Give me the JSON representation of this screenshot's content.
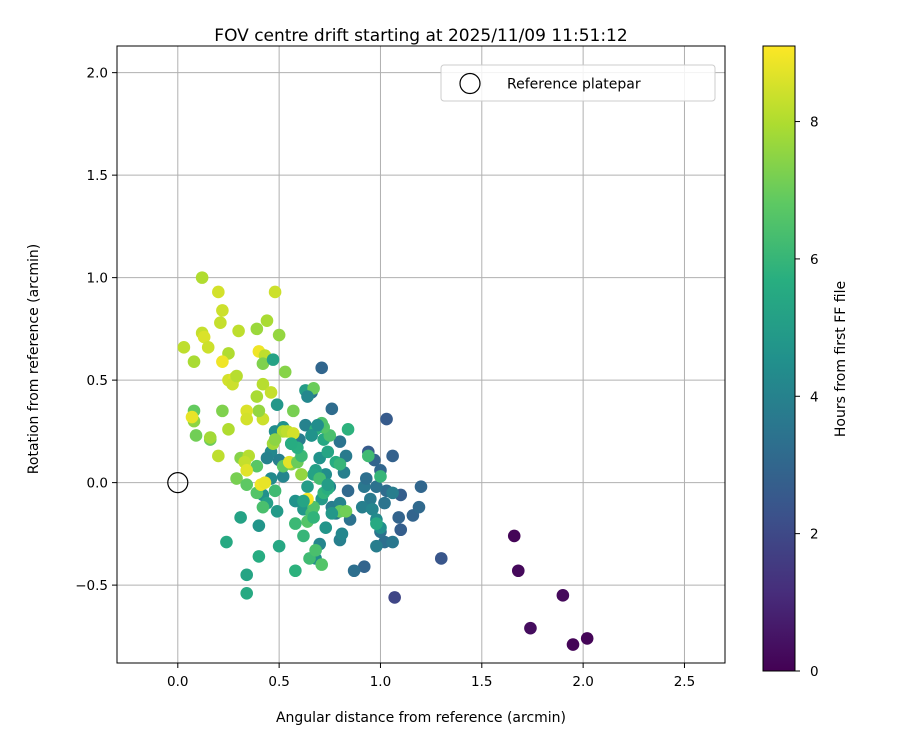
{
  "chart_data": {
    "type": "scatter",
    "title": "FOV centre drift starting at 2025/11/09 11:51:12",
    "xlabel": "Angular distance from reference (arcmin)",
    "ylabel": "Rotation from reference (arcmin)",
    "xlim": [
      -0.3,
      2.7
    ],
    "ylim": [
      -0.88,
      2.13
    ],
    "xticks": [
      0.0,
      0.5,
      1.0,
      1.5,
      2.0,
      2.5
    ],
    "xtick_labels": [
      "0.0",
      "0.5",
      "1.0",
      "1.5",
      "2.0",
      "2.5"
    ],
    "yticks": [
      -0.5,
      0.0,
      0.5,
      1.0,
      1.5,
      2.0
    ],
    "ytick_labels": [
      "−0.5",
      "0.0",
      "0.5",
      "1.0",
      "1.5",
      "2.0"
    ],
    "grid": true,
    "legend": {
      "label": "Reference platepar",
      "position": "top-right"
    },
    "reference_point": {
      "x": 0.0,
      "y": 0.0
    },
    "colorbar": {
      "label": "Hours from first FF file",
      "range": [
        0,
        9.1
      ],
      "ticks": [
        0,
        2,
        4,
        6,
        8
      ],
      "tick_labels": [
        "0",
        "2",
        "4",
        "6",
        "8"
      ],
      "colormap": "viridis"
    },
    "points": [
      {
        "x": 1.66,
        "y": -0.26,
        "t": 0.1
      },
      {
        "x": 1.68,
        "y": -0.43,
        "t": 0.2
      },
      {
        "x": 1.74,
        "y": -0.71,
        "t": 0.3
      },
      {
        "x": 1.9,
        "y": -0.55,
        "t": 0.2
      },
      {
        "x": 1.95,
        "y": -0.79,
        "t": 0.1
      },
      {
        "x": 2.02,
        "y": -0.76,
        "t": 0.1
      },
      {
        "x": 1.07,
        "y": -0.56,
        "t": 1.9
      },
      {
        "x": 1.3,
        "y": -0.37,
        "t": 2.4
      },
      {
        "x": 1.03,
        "y": 0.31,
        "t": 2.6
      },
      {
        "x": 1.06,
        "y": 0.13,
        "t": 2.8
      },
      {
        "x": 0.92,
        "y": -0.41,
        "t": 2.9
      },
      {
        "x": 0.87,
        "y": -0.43,
        "t": 3.3
      },
      {
        "x": 1.1,
        "y": -0.06,
        "t": 2.7
      },
      {
        "x": 1.16,
        "y": -0.16,
        "t": 2.9
      },
      {
        "x": 1.2,
        "y": -0.02,
        "t": 3.0
      },
      {
        "x": 1.19,
        "y": -0.12,
        "t": 3.1
      },
      {
        "x": 1.1,
        "y": -0.23,
        "t": 2.7
      },
      {
        "x": 1.09,
        "y": -0.17,
        "t": 2.9
      },
      {
        "x": 1.02,
        "y": -0.29,
        "t": 3.3
      },
      {
        "x": 1.06,
        "y": -0.29,
        "t": 3.6
      },
      {
        "x": 0.98,
        "y": -0.31,
        "t": 3.8
      },
      {
        "x": 1.0,
        "y": -0.24,
        "t": 3.4
      },
      {
        "x": 0.94,
        "y": 0.15,
        "t": 2.6
      },
      {
        "x": 0.97,
        "y": 0.11,
        "t": 2.9
      },
      {
        "x": 1.0,
        "y": 0.06,
        "t": 3.0
      },
      {
        "x": 1.03,
        "y": -0.04,
        "t": 3.2
      },
      {
        "x": 0.98,
        "y": -0.02,
        "t": 3.4
      },
      {
        "x": 0.92,
        "y": -0.02,
        "t": 3.6
      },
      {
        "x": 0.95,
        "y": -0.08,
        "t": 3.7
      },
      {
        "x": 0.91,
        "y": -0.12,
        "t": 3.9
      },
      {
        "x": 0.96,
        "y": -0.13,
        "t": 4.1
      },
      {
        "x": 0.98,
        "y": -0.18,
        "t": 4.3
      },
      {
        "x": 1.0,
        "y": -0.22,
        "t": 4.5
      },
      {
        "x": 1.02,
        "y": -0.1,
        "t": 3.5
      },
      {
        "x": 1.06,
        "y": -0.05,
        "t": 3.8
      },
      {
        "x": 0.93,
        "y": 0.02,
        "t": 3.3
      },
      {
        "x": 0.71,
        "y": 0.56,
        "t": 3.0
      },
      {
        "x": 0.76,
        "y": 0.36,
        "t": 3.2
      },
      {
        "x": 0.8,
        "y": 0.2,
        "t": 3.5
      },
      {
        "x": 0.83,
        "y": 0.13,
        "t": 3.7
      },
      {
        "x": 0.82,
        "y": 0.05,
        "t": 3.9
      },
      {
        "x": 0.84,
        "y": -0.04,
        "t": 3.1
      },
      {
        "x": 0.85,
        "y": -0.18,
        "t": 3.4
      },
      {
        "x": 0.8,
        "y": -0.28,
        "t": 3.9
      },
      {
        "x": 0.81,
        "y": -0.25,
        "t": 4.2
      },
      {
        "x": 0.78,
        "y": -0.15,
        "t": 3.6
      },
      {
        "x": 0.76,
        "y": -0.12,
        "t": 3.8
      },
      {
        "x": 0.8,
        "y": -0.1,
        "t": 4.0
      },
      {
        "x": 0.75,
        "y": -0.02,
        "t": 4.2
      },
      {
        "x": 0.73,
        "y": 0.04,
        "t": 4.4
      },
      {
        "x": 0.7,
        "y": 0.12,
        "t": 4.6
      },
      {
        "x": 0.7,
        "y": -0.3,
        "t": 4.1
      },
      {
        "x": 0.68,
        "y": -0.37,
        "t": 4.3
      },
      {
        "x": 0.73,
        "y": -0.22,
        "t": 4.7
      },
      {
        "x": 0.71,
        "y": -0.08,
        "t": 4.9
      },
      {
        "x": 0.68,
        "y": 0.06,
        "t": 5.1
      },
      {
        "x": 0.74,
        "y": 0.15,
        "t": 5.3
      },
      {
        "x": 0.72,
        "y": 0.21,
        "t": 5.4
      },
      {
        "x": 0.66,
        "y": 0.23,
        "t": 4.5
      },
      {
        "x": 0.63,
        "y": 0.28,
        "t": 4.0
      },
      {
        "x": 0.6,
        "y": 0.21,
        "t": 3.8
      },
      {
        "x": 0.66,
        "y": 0.44,
        "t": 3.5
      },
      {
        "x": 0.63,
        "y": 0.45,
        "t": 5.0
      },
      {
        "x": 0.56,
        "y": 0.19,
        "t": 4.3
      },
      {
        "x": 0.52,
        "y": 0.27,
        "t": 4.6
      },
      {
        "x": 0.49,
        "y": 0.38,
        "t": 4.8
      },
      {
        "x": 0.48,
        "y": 0.25,
        "t": 4.4
      },
      {
        "x": 0.46,
        "y": 0.15,
        "t": 4.2
      },
      {
        "x": 0.44,
        "y": 0.12,
        "t": 4.0
      },
      {
        "x": 0.5,
        "y": 0.11,
        "t": 3.9
      },
      {
        "x": 0.52,
        "y": 0.03,
        "t": 4.1
      },
      {
        "x": 0.46,
        "y": 0.02,
        "t": 4.3
      },
      {
        "x": 0.42,
        "y": -0.06,
        "t": 4.5
      },
      {
        "x": 0.49,
        "y": -0.14,
        "t": 4.9
      },
      {
        "x": 0.44,
        "y": -0.1,
        "t": 5.1
      },
      {
        "x": 0.4,
        "y": -0.21,
        "t": 4.7
      },
      {
        "x": 0.31,
        "y": -0.17,
        "t": 5.2
      },
      {
        "x": 0.34,
        "y": -0.45,
        "t": 5.3
      },
      {
        "x": 0.34,
        "y": -0.54,
        "t": 5.5
      },
      {
        "x": 0.4,
        "y": -0.36,
        "t": 5.6
      },
      {
        "x": 0.5,
        "y": -0.31,
        "t": 5.4
      },
      {
        "x": 0.58,
        "y": -0.09,
        "t": 4.6
      },
      {
        "x": 0.62,
        "y": -0.13,
        "t": 4.8
      },
      {
        "x": 0.64,
        "y": -0.02,
        "t": 5.0
      },
      {
        "x": 0.67,
        "y": 0.04,
        "t": 5.2
      },
      {
        "x": 0.58,
        "y": -0.43,
        "t": 5.8
      },
      {
        "x": 0.62,
        "y": -0.26,
        "t": 6.0
      },
      {
        "x": 0.65,
        "y": -0.37,
        "t": 6.2
      },
      {
        "x": 0.68,
        "y": -0.33,
        "t": 6.4
      },
      {
        "x": 0.71,
        "y": -0.4,
        "t": 6.6
      },
      {
        "x": 0.58,
        "y": -0.2,
        "t": 6.1
      },
      {
        "x": 0.66,
        "y": -0.15,
        "t": 6.3
      },
      {
        "x": 0.67,
        "y": -0.12,
        "t": 6.5
      },
      {
        "x": 0.72,
        "y": -0.05,
        "t": 5.9
      },
      {
        "x": 0.74,
        "y": -0.03,
        "t": 5.7
      },
      {
        "x": 0.78,
        "y": 0.1,
        "t": 5.6
      },
      {
        "x": 0.84,
        "y": 0.26,
        "t": 5.8
      },
      {
        "x": 0.8,
        "y": 0.09,
        "t": 6.0
      },
      {
        "x": 0.94,
        "y": 0.13,
        "t": 6.2
      },
      {
        "x": 1.0,
        "y": 0.03,
        "t": 6.0
      },
      {
        "x": 0.98,
        "y": -0.2,
        "t": 5.5
      },
      {
        "x": 0.8,
        "y": -0.14,
        "t": 6.9
      },
      {
        "x": 0.83,
        "y": -0.14,
        "t": 7.1
      },
      {
        "x": 0.75,
        "y": 0.23,
        "t": 6.4
      },
      {
        "x": 0.72,
        "y": 0.27,
        "t": 6.6
      },
      {
        "x": 0.67,
        "y": 0.46,
        "t": 7.0
      },
      {
        "x": 0.57,
        "y": 0.35,
        "t": 7.2
      },
      {
        "x": 0.53,
        "y": 0.54,
        "t": 7.4
      },
      {
        "x": 0.5,
        "y": 0.72,
        "t": 7.6
      },
      {
        "x": 0.44,
        "y": 0.79,
        "t": 7.9
      },
      {
        "x": 0.39,
        "y": 0.75,
        "t": 7.7
      },
      {
        "x": 0.22,
        "y": 0.35,
        "t": 7.3
      },
      {
        "x": 0.16,
        "y": 0.21,
        "t": 7.0
      },
      {
        "x": 0.09,
        "y": 0.23,
        "t": 7.1
      },
      {
        "x": 0.08,
        "y": 0.35,
        "t": 6.9
      },
      {
        "x": 0.24,
        "y": -0.29,
        "t": 5.5
      },
      {
        "x": 0.29,
        "y": 0.02,
        "t": 7.2
      },
      {
        "x": 0.34,
        "y": -0.01,
        "t": 6.8
      },
      {
        "x": 0.39,
        "y": 0.08,
        "t": 6.7
      },
      {
        "x": 0.31,
        "y": 0.12,
        "t": 7.4
      },
      {
        "x": 0.39,
        "y": -0.05,
        "t": 6.6
      },
      {
        "x": 0.42,
        "y": -0.12,
        "t": 6.4
      },
      {
        "x": 0.48,
        "y": -0.04,
        "t": 6.2
      },
      {
        "x": 0.52,
        "y": 0.08,
        "t": 6.8
      },
      {
        "x": 0.56,
        "y": 0.09,
        "t": 7.4
      },
      {
        "x": 0.61,
        "y": 0.04,
        "t": 7.6
      },
      {
        "x": 0.64,
        "y": -0.08,
        "t": 9.0
      },
      {
        "x": 0.41,
        "y": -0.01,
        "t": 8.9
      },
      {
        "x": 0.43,
        "y": 0.0,
        "t": 8.8
      },
      {
        "x": 0.47,
        "y": 0.19,
        "t": 7.8
      },
      {
        "x": 0.52,
        "y": 0.25,
        "t": 8.0
      },
      {
        "x": 0.54,
        "y": 0.25,
        "t": 8.2
      },
      {
        "x": 0.57,
        "y": 0.24,
        "t": 8.5
      },
      {
        "x": 0.55,
        "y": 0.1,
        "t": 8.7
      },
      {
        "x": 0.48,
        "y": 0.21,
        "t": 7.5
      },
      {
        "x": 0.42,
        "y": 0.48,
        "t": 8.1
      },
      {
        "x": 0.42,
        "y": 0.31,
        "t": 8.4
      },
      {
        "x": 0.39,
        "y": 0.42,
        "t": 7.9
      },
      {
        "x": 0.46,
        "y": 0.44,
        "t": 8.3
      },
      {
        "x": 0.4,
        "y": 0.35,
        "t": 7.6
      },
      {
        "x": 0.34,
        "y": 0.35,
        "t": 8.6
      },
      {
        "x": 0.34,
        "y": 0.31,
        "t": 8.5
      },
      {
        "x": 0.35,
        "y": 0.13,
        "t": 8.1
      },
      {
        "x": 0.33,
        "y": 0.1,
        "t": 8.3
      },
      {
        "x": 0.34,
        "y": 0.06,
        "t": 8.7
      },
      {
        "x": 0.2,
        "y": 0.13,
        "t": 8.2
      },
      {
        "x": 0.16,
        "y": 0.22,
        "t": 7.8
      },
      {
        "x": 0.25,
        "y": 0.26,
        "t": 8.0
      },
      {
        "x": 0.25,
        "y": 0.5,
        "t": 8.5
      },
      {
        "x": 0.28,
        "y": 0.51,
        "t": 8.7
      },
      {
        "x": 0.27,
        "y": 0.48,
        "t": 8.4
      },
      {
        "x": 0.29,
        "y": 0.52,
        "t": 8.1
      },
      {
        "x": 0.25,
        "y": 0.63,
        "t": 8.0
      },
      {
        "x": 0.22,
        "y": 0.59,
        "t": 8.9
      },
      {
        "x": 0.3,
        "y": 0.74,
        "t": 8.2
      },
      {
        "x": 0.21,
        "y": 0.78,
        "t": 8.3
      },
      {
        "x": 0.22,
        "y": 0.84,
        "t": 8.4
      },
      {
        "x": 0.2,
        "y": 0.93,
        "t": 8.5
      },
      {
        "x": 0.12,
        "y": 1.0,
        "t": 8.0
      },
      {
        "x": 0.12,
        "y": 0.73,
        "t": 8.3
      },
      {
        "x": 0.13,
        "y": 0.71,
        "t": 8.6
      },
      {
        "x": 0.15,
        "y": 0.66,
        "t": 8.4
      },
      {
        "x": 0.03,
        "y": 0.66,
        "t": 8.2
      },
      {
        "x": 0.08,
        "y": 0.59,
        "t": 7.9
      },
      {
        "x": 0.08,
        "y": 0.3,
        "t": 7.5
      },
      {
        "x": 0.07,
        "y": 0.32,
        "t": 8.8
      },
      {
        "x": 0.48,
        "y": 0.93,
        "t": 8.4
      },
      {
        "x": 0.4,
        "y": 0.64,
        "t": 8.9
      },
      {
        "x": 0.43,
        "y": 0.62,
        "t": 8.2
      },
      {
        "x": 0.42,
        "y": 0.58,
        "t": 7.3
      },
      {
        "x": 0.47,
        "y": 0.6,
        "t": 5.2
      },
      {
        "x": 0.59,
        "y": 0.1,
        "t": 7.0
      },
      {
        "x": 0.64,
        "y": -0.19,
        "t": 6.6
      },
      {
        "x": 0.67,
        "y": -0.17,
        "t": 5.9
      },
      {
        "x": 0.7,
        "y": 0.02,
        "t": 6.3
      },
      {
        "x": 0.61,
        "y": 0.13,
        "t": 6.1
      },
      {
        "x": 0.59,
        "y": 0.17,
        "t": 5.7
      },
      {
        "x": 0.56,
        "y": 0.19,
        "t": 5.6
      },
      {
        "x": 0.62,
        "y": -0.09,
        "t": 5.3
      },
      {
        "x": 0.68,
        "y": 0.26,
        "t": 5.8
      },
      {
        "x": 0.71,
        "y": 0.29,
        "t": 6.5
      },
      {
        "x": 0.74,
        "y": -0.01,
        "t": 5.0
      },
      {
        "x": 0.76,
        "y": -0.15,
        "t": 4.8
      },
      {
        "x": 0.66,
        "y": 0.23,
        "t": 4.6
      },
      {
        "x": 0.64,
        "y": 0.42,
        "t": 4.2
      },
      {
        "x": 0.69,
        "y": 0.28,
        "t": 4.4
      }
    ]
  }
}
